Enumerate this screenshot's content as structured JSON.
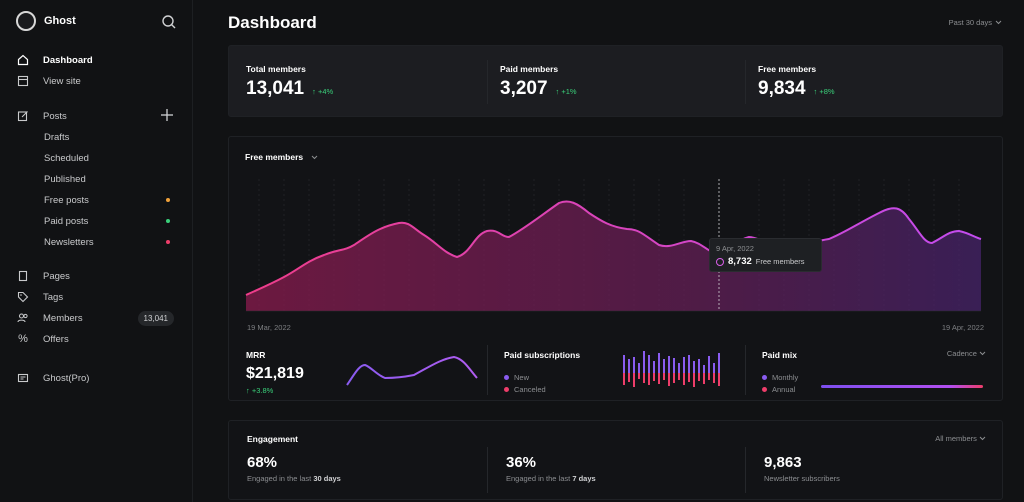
{
  "brand": {
    "name": "Ghost"
  },
  "nav": {
    "dashboard": "Dashboard",
    "view_site": "View site",
    "posts": "Posts",
    "drafts": "Drafts",
    "scheduled": "Scheduled",
    "published": "Published",
    "free_posts": "Free posts",
    "paid_posts": "Paid posts",
    "newsletters": "Newsletters",
    "pages": "Pages",
    "tags": "Tags",
    "members": "Members",
    "members_count": "13,041",
    "offers": "Offers",
    "ghost_pro": "Ghost(Pro)"
  },
  "colors": {
    "free_dot": "#f0a13a",
    "paid_dot": "#3ad07a",
    "newsletter_dot": "#ee3d6a",
    "accent": "#d95fe8"
  },
  "header": {
    "title": "Dashboard",
    "range": "Past 30 days"
  },
  "stats": [
    {
      "label": "Total members",
      "value": "13,041",
      "delta": "↑ +4%"
    },
    {
      "label": "Paid members",
      "value": "3,207",
      "delta": "↑ +1%"
    },
    {
      "label": "Free members",
      "value": "9,834",
      "delta": "↑ +8%"
    }
  ],
  "chart": {
    "title": "Free members",
    "start_date": "19 Mar, 2022",
    "end_date": "19 Apr, 2022",
    "tooltip": {
      "date": "9 Apr, 2022",
      "value": "8,732",
      "label": "Free members"
    }
  },
  "mrr": {
    "title": "MRR",
    "value": "$21,819",
    "delta": "↑ +3.8%"
  },
  "paid_subs": {
    "title": "Paid subscriptions",
    "new": "New",
    "canceled": "Canceled"
  },
  "paid_mix": {
    "title": "Paid mix",
    "cadence": "Cadence",
    "monthly": "Monthly",
    "annual": "Annual"
  },
  "engagement": {
    "title": "Engagement",
    "filter": "All members",
    "items": [
      {
        "value": "68%",
        "prefix": "Engaged in the last",
        "strong": "30 days"
      },
      {
        "value": "36%",
        "prefix": "Engaged in the last",
        "strong": "7 days"
      },
      {
        "value": "9,863",
        "prefix": "Newsletter subscribers",
        "strong": ""
      }
    ]
  }
}
